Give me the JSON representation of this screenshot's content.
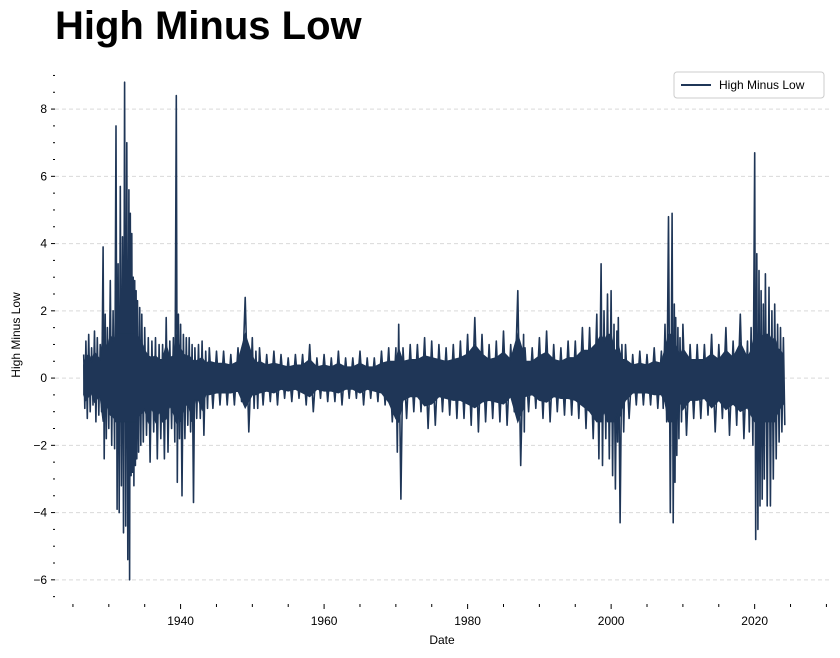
{
  "chart_data": {
    "type": "line",
    "title": "High Minus Low",
    "xlabel": "Date",
    "ylabel": "High Minus Low",
    "xlim": [
      1922.5,
      2030.5
    ],
    "ylim": [
      -6.6,
      9.4
    ],
    "x_ticks": [
      1940,
      1960,
      1980,
      2000,
      2020
    ],
    "y_ticks": [
      -6,
      -4,
      -2,
      0,
      2,
      4,
      6,
      8
    ],
    "grid": "horizontal dashed",
    "legend_position": "top-right",
    "series": [
      {
        "name": "High Minus Low",
        "color": "#1f3657",
        "x": [
          1926.5,
          1926.8,
          1927.2,
          1927.6,
          1928.0,
          1928.4,
          1928.8,
          1929.2,
          1929.5,
          1929.8,
          1930.2,
          1930.6,
          1931.0,
          1931.3,
          1931.6,
          1931.9,
          1932.2,
          1932.5,
          1932.8,
          1933.0,
          1933.2,
          1933.4,
          1933.6,
          1933.8,
          1934.0,
          1934.3,
          1934.6,
          1935.0,
          1935.5,
          1936.0,
          1936.5,
          1937.0,
          1937.5,
          1938.0,
          1938.5,
          1939.0,
          1939.4,
          1939.7,
          1940.0,
          1940.4,
          1940.8,
          1941.2,
          1941.6,
          1942.0,
          1942.5,
          1943.0,
          1943.5,
          1944.0,
          1945.0,
          1946.0,
          1947.0,
          1948.0,
          1949.0,
          1950.0,
          1950.5,
          1951.0,
          1952.0,
          1953.0,
          1954.0,
          1955.0,
          1956.0,
          1957.0,
          1958.0,
          1959.0,
          1960.0,
          1961.0,
          1962.0,
          1963.0,
          1964.0,
          1965.0,
          1966.0,
          1967.0,
          1968.0,
          1969.0,
          1970.0,
          1970.4,
          1971.0,
          1972.0,
          1973.0,
          1974.0,
          1975.0,
          1976.0,
          1977.0,
          1978.0,
          1979.0,
          1980.0,
          1981.0,
          1982.0,
          1983.0,
          1984.0,
          1985.0,
          1986.0,
          1987.0,
          1987.8,
          1988.0,
          1989.0,
          1990.0,
          1991.0,
          1992.0,
          1993.0,
          1994.0,
          1995.0,
          1996.0,
          1997.0,
          1998.0,
          1998.6,
          1999.0,
          1999.5,
          2000.0,
          2000.4,
          2000.8,
          2001.0,
          2001.5,
          2002.0,
          2003.0,
          2004.0,
          2005.0,
          2006.0,
          2007.0,
          2007.5,
          2008.0,
          2008.5,
          2008.8,
          2009.0,
          2009.3,
          2009.6,
          2010.0,
          2011.0,
          2012.0,
          2013.0,
          2014.0,
          2015.0,
          2016.0,
          2017.0,
          2018.0,
          2019.0,
          2019.5,
          2020.0,
          2020.3,
          2020.6,
          2020.9,
          2021.2,
          2021.5,
          2022.0,
          2022.4,
          2022.8,
          2023.2,
          2023.6,
          2024.0
        ],
        "high": [
          0.7,
          1.1,
          1.3,
          0.9,
          1.4,
          1.2,
          1.0,
          3.9,
          1.9,
          1.5,
          2.9,
          2.0,
          7.5,
          3.4,
          5.7,
          4.2,
          8.8,
          7.0,
          5.6,
          4.9,
          4.3,
          3.0,
          2.9,
          2.6,
          2.3,
          2.1,
          1.9,
          1.5,
          1.2,
          1.1,
          1.2,
          1.0,
          1.0,
          1.8,
          1.1,
          1.2,
          8.4,
          1.9,
          1.6,
          1.3,
          1.2,
          1.2,
          1.0,
          0.9,
          1.0,
          1.1,
          0.8,
          0.9,
          0.8,
          0.8,
          0.7,
          0.9,
          2.4,
          1.2,
          0.8,
          0.9,
          0.7,
          0.8,
          0.7,
          0.6,
          0.7,
          0.7,
          1.0,
          0.6,
          0.7,
          0.6,
          0.8,
          0.6,
          0.6,
          0.8,
          0.6,
          0.6,
          0.8,
          0.9,
          0.9,
          1.6,
          0.9,
          1.0,
          1.0,
          1.2,
          1.1,
          1.0,
          0.9,
          1.0,
          1.1,
          1.3,
          1.8,
          1.3,
          1.0,
          1.1,
          1.4,
          1.0,
          2.6,
          1.3,
          0.9,
          0.9,
          1.2,
          1.4,
          1.0,
          0.9,
          1.1,
          1.1,
          1.5,
          1.5,
          1.9,
          3.4,
          2.0,
          2.5,
          2.6,
          1.6,
          1.4,
          1.8,
          1.0,
          1.0,
          0.7,
          0.8,
          0.7,
          0.9,
          0.8,
          1.6,
          4.8,
          4.9,
          2.2,
          1.8,
          1.5,
          1.2,
          1.6,
          1.0,
          1.0,
          1.0,
          1.3,
          1.0,
          1.5,
          1.1,
          1.9,
          1.1,
          1.5,
          6.7,
          3.7,
          3.2,
          2.6,
          2.2,
          3.1,
          2.7,
          2.0,
          2.2,
          1.6,
          1.5,
          1.2
        ],
        "low": [
          -0.9,
          -1.2,
          -1.0,
          -0.8,
          -1.3,
          -1.1,
          -1.0,
          -2.4,
          -1.8,
          -1.5,
          -2.0,
          -2.1,
          -3.9,
          -4.0,
          -3.2,
          -4.6,
          -4.4,
          -5.4,
          -6.0,
          -2.9,
          -2.8,
          -3.2,
          -2.6,
          -2.4,
          -2.2,
          -2.0,
          -1.9,
          -1.7,
          -2.5,
          -1.6,
          -2.4,
          -1.8,
          -2.4,
          -2.2,
          -1.5,
          -1.9,
          -3.1,
          -1.8,
          -3.5,
          -1.8,
          -1.4,
          -1.6,
          -3.7,
          -1.2,
          -1.2,
          -1.7,
          -0.9,
          -0.9,
          -0.8,
          -0.8,
          -0.8,
          -0.7,
          -1.6,
          -0.9,
          -0.9,
          -0.8,
          -0.7,
          -0.8,
          -0.6,
          -0.7,
          -0.6,
          -0.8,
          -1.0,
          -0.6,
          -0.7,
          -0.7,
          -0.8,
          -0.6,
          -0.6,
          -0.8,
          -0.6,
          -0.7,
          -0.8,
          -1.3,
          -2.2,
          -3.6,
          -1.2,
          -1.0,
          -1.0,
          -1.5,
          -1.4,
          -1.0,
          -1.1,
          -1.2,
          -1.2,
          -1.4,
          -1.6,
          -1.3,
          -1.2,
          -1.3,
          -1.4,
          -1.0,
          -2.6,
          -1.6,
          -1.0,
          -0.9,
          -1.2,
          -1.3,
          -1.0,
          -1.1,
          -1.1,
          -1.2,
          -1.5,
          -1.8,
          -2.4,
          -2.6,
          -1.8,
          -2.4,
          -2.9,
          -3.3,
          -1.9,
          -4.3,
          -1.6,
          -1.2,
          -0.8,
          -0.8,
          -0.8,
          -0.9,
          -0.9,
          -1.3,
          -4.0,
          -4.3,
          -3.1,
          -2.3,
          -1.8,
          -1.3,
          -1.7,
          -1.2,
          -1.2,
          -1.1,
          -1.6,
          -1.2,
          -1.7,
          -1.4,
          -1.8,
          -1.6,
          -2.0,
          -4.8,
          -4.5,
          -3.8,
          -3.6,
          -3.0,
          -3.8,
          -3.8,
          -3.0,
          -2.4,
          -1.9,
          -1.6,
          -1.4
        ]
      }
    ]
  }
}
